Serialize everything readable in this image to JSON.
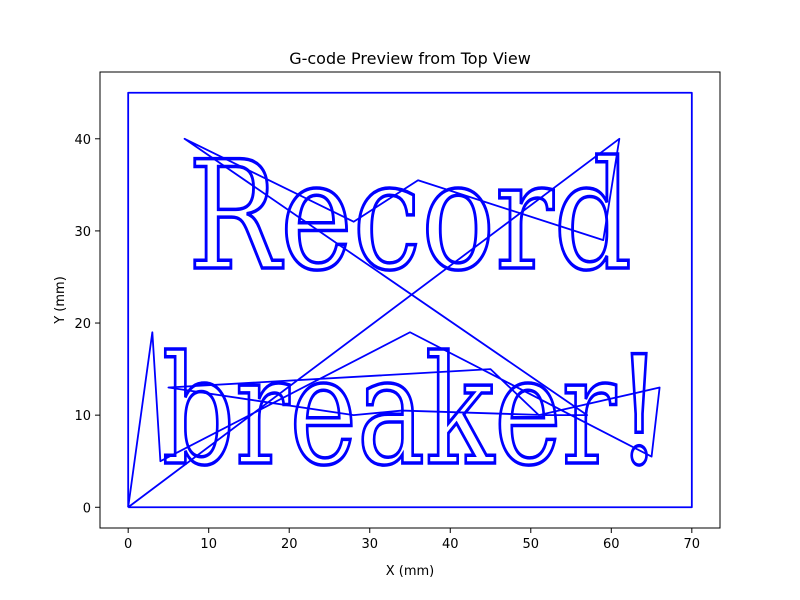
{
  "chart_data": {
    "type": "line",
    "title": "G-code Preview from Top View",
    "xlabel": "X (mm)",
    "ylabel": "Y (mm)",
    "xlim": [
      -3.5,
      73.5
    ],
    "ylim": [
      -2.25,
      47.25
    ],
    "xticks": [
      0,
      10,
      20,
      30,
      40,
      50,
      60,
      70
    ],
    "yticks": [
      0,
      10,
      20,
      30,
      40
    ],
    "grid": false,
    "legend": "none",
    "line_color": "#0000ff",
    "engraved_text": [
      "Record",
      "breaker!"
    ],
    "series": [
      {
        "kind": "border",
        "x": [
          0,
          0,
          70,
          70,
          0
        ],
        "y": [
          0,
          45,
          45,
          0,
          0
        ]
      },
      {
        "kind": "travel",
        "x": [
          0,
          61,
          59,
          36,
          28,
          7,
          57,
          52,
          34,
          28,
          5,
          45,
          51,
          66,
          65,
          35,
          4,
          3,
          0
        ],
        "y": [
          0,
          40,
          29,
          35.5,
          31,
          40,
          10,
          10,
          10.5,
          10,
          13,
          15,
          10,
          13,
          5.5,
          19,
          5,
          19,
          0
        ]
      }
    ]
  }
}
